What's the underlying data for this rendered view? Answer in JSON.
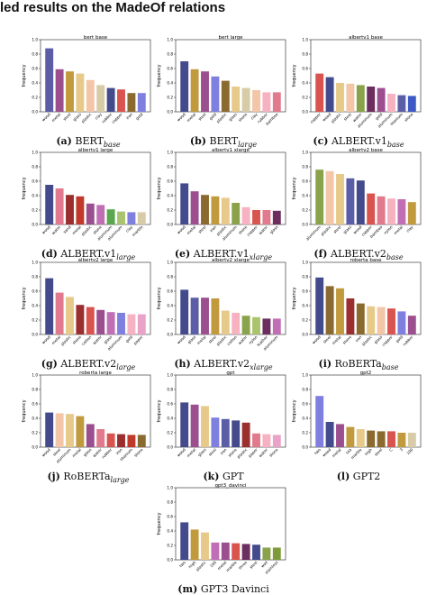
{
  "page_title": "led results on the MadeOf relations",
  "y_axis_label": "frequency",
  "y_ticks": [
    "0.0",
    "0.2",
    "0.4",
    "0.6",
    "0.8",
    "1.0"
  ],
  "chart_data": [
    {
      "type": "bar",
      "title": "bert base",
      "caption_tag": "(a)",
      "caption_main": "BERT",
      "caption_sub": "base",
      "ylabel": "frequency",
      "ylim": [
        0,
        1
      ],
      "categories": [
        "wood",
        "metal",
        "steel",
        "glass",
        "plastic",
        "clay",
        "rubber",
        "copper",
        "iron",
        "gold"
      ],
      "values": [
        0.88,
        0.59,
        0.56,
        0.53,
        0.44,
        0.37,
        0.33,
        0.31,
        0.26,
        0.26
      ],
      "colors": [
        "#5b5ea6",
        "#9b4f8f",
        "#c29a3e",
        "#e7c98a",
        "#f2c6a7",
        "#d7cba8",
        "#444b8c",
        "#d9534f",
        "#8a6a2e",
        "#7f7fdf"
      ]
    },
    {
      "type": "bar",
      "title": "bert large",
      "caption_tag": "(b)",
      "caption_main": "BERT",
      "caption_sub": "large",
      "ylabel": "frequency",
      "ylim": [
        0,
        1
      ],
      "categories": [
        "wood",
        "metal",
        "steel",
        "gold",
        "plastic",
        "glass",
        "stone",
        "clay",
        "rubber",
        "bamboo"
      ],
      "values": [
        0.7,
        0.59,
        0.56,
        0.49,
        0.43,
        0.35,
        0.33,
        0.3,
        0.27,
        0.27
      ],
      "colors": [
        "#444b8c",
        "#c29a3e",
        "#9b4f8f",
        "#7f7fdf",
        "#8a6a2e",
        "#e7c98a",
        "#d7cba8",
        "#f2c6a7",
        "#f7b2c1",
        "#e07a8c"
      ]
    },
    {
      "type": "bar",
      "title": "albertv1 base",
      "caption_tag": "(c)",
      "caption_main": "ALBERT.v1",
      "caption_sub": "base",
      "ylabel": "frequency",
      "ylim": [
        0,
        1
      ],
      "categories": [
        "copper",
        "wood",
        "plastic",
        "steel",
        "water",
        "aluminum",
        "gold",
        "aluminum",
        "titanium",
        "stone"
      ],
      "values": [
        0.53,
        0.48,
        0.4,
        0.39,
        0.37,
        0.35,
        0.33,
        0.25,
        0.23,
        0.22
      ],
      "colors": [
        "#d9534f",
        "#444b8c",
        "#e7c98a",
        "#f2c6a7",
        "#8aa34a",
        "#6b2e5e",
        "#9b4f8f",
        "#f7b2c1",
        "#5b5ea6",
        "#3d59c4"
      ]
    },
    {
      "type": "bar",
      "title": "albertv1 large",
      "caption_tag": "(d)",
      "caption_main": "ALBERT.v1",
      "caption_sub": "large",
      "ylabel": "frequency",
      "ylim": [
        0,
        1
      ],
      "categories": [
        "wood",
        "water",
        "sand",
        "metal",
        "plastic",
        "stone",
        "aluminum",
        "aluminum",
        "clay",
        "marble"
      ],
      "values": [
        0.55,
        0.5,
        0.41,
        0.39,
        0.29,
        0.27,
        0.21,
        0.18,
        0.17,
        0.17
      ],
      "colors": [
        "#444b8c",
        "#e07a8c",
        "#9b2f2f",
        "#c0392b",
        "#9b4f8f",
        "#c06fb5",
        "#5aa84e",
        "#a9c46d",
        "#7f7fdf",
        "#d7cba8"
      ]
    },
    {
      "type": "bar",
      "title": "albertv1 xlarge",
      "caption_tag": "(e)",
      "caption_main": "ALBERT.v1",
      "caption_sub": "xlarge",
      "ylabel": "frequency",
      "ylim": [
        0,
        1
      ],
      "categories": [
        "wood",
        "metal",
        "steel",
        "iron",
        "plastic",
        "aluminum",
        "stone",
        "copper",
        "water",
        "glass"
      ],
      "values": [
        0.57,
        0.46,
        0.41,
        0.39,
        0.37,
        0.3,
        0.24,
        0.2,
        0.2,
        0.19
      ],
      "colors": [
        "#444b8c",
        "#9b4f8f",
        "#8a6a2e",
        "#c29a3e",
        "#e7c98a",
        "#8aa34a",
        "#f7b2c1",
        "#d9534f",
        "#e07a8c",
        "#6b2e5e"
      ]
    },
    {
      "type": "bar",
      "title": "albertv2 base",
      "caption_tag": "(f)",
      "caption_main": "ALBERT.v2",
      "caption_sub": "base",
      "ylabel": "frequency",
      "ylim": [
        0,
        1
      ],
      "categories": [
        "aluminum",
        "plastic",
        "steel",
        "glass",
        "wood",
        "copper",
        "bamboo",
        "nylon",
        "metal",
        "clay"
      ],
      "values": [
        0.76,
        0.74,
        0.7,
        0.64,
        0.61,
        0.43,
        0.39,
        0.36,
        0.35,
        0.31
      ],
      "colors": [
        "#8aa34a",
        "#f2c6a7",
        "#e7c98a",
        "#5b5ea6",
        "#444b8c",
        "#d9534f",
        "#e07a8c",
        "#f7b2c1",
        "#c06fb5",
        "#c29a3e"
      ]
    },
    {
      "type": "bar",
      "title": "albertv2 large",
      "caption_tag": "(g)",
      "caption_main": "ALBERT.v2",
      "caption_sub": "large",
      "ylabel": "frequency",
      "ylim": [
        0,
        1
      ],
      "categories": [
        "wood",
        "metal",
        "plastic",
        "stone",
        "cotton",
        "water",
        "glass",
        "aluminum",
        "gold",
        "paper"
      ],
      "values": [
        0.78,
        0.58,
        0.52,
        0.41,
        0.38,
        0.34,
        0.31,
        0.3,
        0.28,
        0.28
      ],
      "colors": [
        "#444b8c",
        "#e07a8c",
        "#e7c98a",
        "#9b2f2f",
        "#d9534f",
        "#9b4f8f",
        "#c06fb5",
        "#7f7fdf",
        "#f7b2c1",
        "#e9a3c9"
      ]
    },
    {
      "type": "bar",
      "title": "albertv2 xlarge",
      "caption_tag": "(h)",
      "caption_main": "ALBERT.v2",
      "caption_sub": "xlarge",
      "ylabel": "frequency",
      "ylim": [
        0,
        1
      ],
      "categories": [
        "wood",
        "glass",
        "metal",
        "steel",
        "plastic",
        "cotton",
        "water",
        "nylon",
        "leather",
        "aluminum"
      ],
      "values": [
        0.62,
        0.51,
        0.51,
        0.5,
        0.33,
        0.3,
        0.26,
        0.24,
        0.22,
        0.22
      ],
      "colors": [
        "#444b8c",
        "#5b5ea6",
        "#9b4f8f",
        "#c29a3e",
        "#e7c98a",
        "#f7b2c1",
        "#8aa34a",
        "#a9c46d",
        "#6b2e5e",
        "#c06fb5"
      ]
    },
    {
      "type": "bar",
      "title": "roberta base",
      "caption_tag": "(i)",
      "caption_main": "RoBERTa",
      "caption_sub": "base",
      "ylabel": "frequency",
      "ylim": [
        0,
        1
      ],
      "categories": [
        "wood",
        "steel",
        "metal",
        "stone",
        "iron",
        "plastic",
        "glass",
        "copper",
        "gold",
        "rubber"
      ],
      "values": [
        0.79,
        0.67,
        0.64,
        0.5,
        0.43,
        0.39,
        0.38,
        0.36,
        0.32,
        0.26
      ],
      "colors": [
        "#444b8c",
        "#8a6a2e",
        "#c29a3e",
        "#9b2f2f",
        "#8a6a2e",
        "#e7c98a",
        "#f2c6a7",
        "#d9534f",
        "#7f7fdf",
        "#9b4f8f"
      ]
    },
    {
      "type": "bar",
      "title": "roberta large",
      "caption_tag": "(j)",
      "caption_main": "RoBERTa",
      "caption_sub": "large",
      "ylabel": "frequency",
      "ylim": [
        0,
        1
      ],
      "categories": [
        "wood",
        "steel",
        "aluminum",
        "metal",
        "glass",
        "water",
        "rubber",
        "iron",
        "titanium",
        "stone"
      ],
      "values": [
        0.48,
        0.47,
        0.46,
        0.43,
        0.32,
        0.25,
        0.19,
        0.18,
        0.17,
        0.17
      ],
      "colors": [
        "#444b8c",
        "#f2c6a7",
        "#e7c98a",
        "#c29a3e",
        "#9b4f8f",
        "#e07a8c",
        "#d9534f",
        "#9b2f2f",
        "#c0392b",
        "#8a6a2e"
      ]
    },
    {
      "type": "bar",
      "title": "gpt",
      "caption_tag": "(k)",
      "caption_main": "GPT",
      "caption_sub": "",
      "ylabel": "frequency",
      "ylim": [
        0,
        1
      ],
      "categories": [
        "wood",
        "metal",
        "glass",
        "steel",
        "iron",
        "stone",
        "plastic",
        "paper",
        "water",
        "stone"
      ],
      "values": [
        0.62,
        0.59,
        0.57,
        0.41,
        0.39,
        0.37,
        0.34,
        0.19,
        0.18,
        0.17
      ],
      "colors": [
        "#444b8c",
        "#9b4f8f",
        "#e7c98a",
        "#7f7fdf",
        "#5b5ea6",
        "#444b8c",
        "#9b2f2f",
        "#e07a8c",
        "#f7b2c1",
        "#e9a3c9"
      ]
    },
    {
      "type": "bar",
      "title": "gpt2",
      "caption_tag": "(l)",
      "caption_main": "GPT2",
      "caption_sub": "",
      "ylabel": "frequency",
      "ylim": [
        0,
        1
      ],
      "categories": [
        "two",
        "wood",
        "metal",
        "ssa",
        "marble",
        "high",
        "steel",
        "C",
        "3",
        "100"
      ],
      "values": [
        0.71,
        0.35,
        0.32,
        0.28,
        0.25,
        0.23,
        0.22,
        0.22,
        0.2,
        0.2
      ],
      "colors": [
        "#7f7fdf",
        "#444b8c",
        "#9b4f8f",
        "#c29a3e",
        "#e7c98a",
        "#8a6a2e",
        "#8a6a2e",
        "#d9534f",
        "#c29a3e",
        "#d7cba8"
      ]
    },
    {
      "type": "bar",
      "title": "gpt3_davinci",
      "caption_tag": "(m)",
      "caption_main": "GPT3 Davinci",
      "caption_sub": "",
      "ylabel": "frequency",
      "ylim": [
        0,
        1
      ],
      "categories": [
        "two",
        "high",
        "plastic",
        "100",
        "metal",
        "marble",
        "three",
        "steel",
        "wall",
        "stainless"
      ],
      "values": [
        0.52,
        0.42,
        0.38,
        0.24,
        0.24,
        0.23,
        0.22,
        0.21,
        0.17,
        0.17
      ],
      "colors": [
        "#444b8c",
        "#c29a3e",
        "#e7c98a",
        "#c06fb5",
        "#9b4f8f",
        "#d9534f",
        "#6b2e5e",
        "#444b8c",
        "#8aa34a",
        "#7e9b3a"
      ]
    }
  ]
}
